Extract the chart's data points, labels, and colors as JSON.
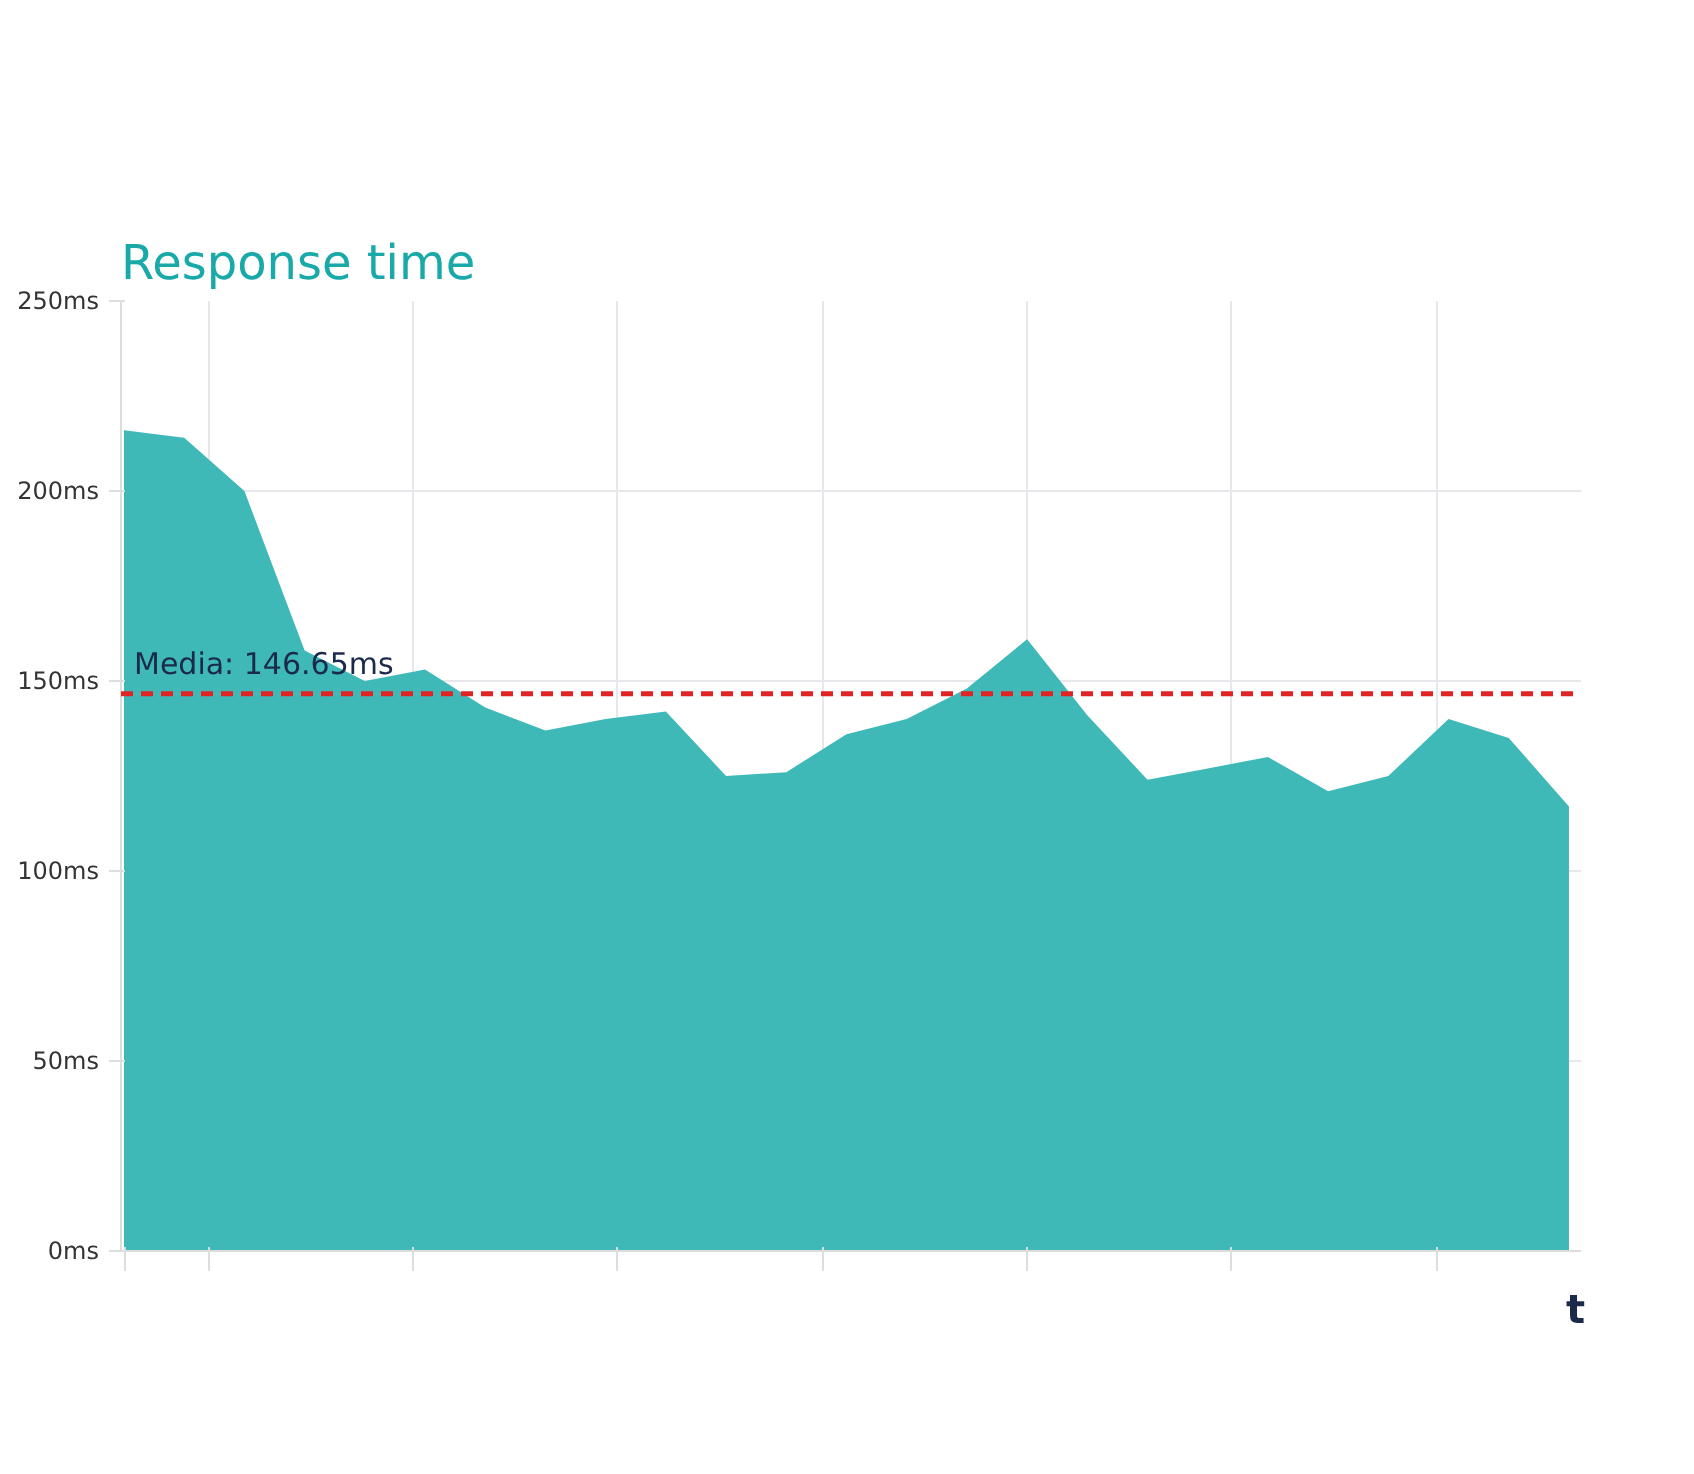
{
  "chart_data": {
    "type": "area",
    "title": "Response time",
    "xlabel": "t",
    "categories": [
      null,
      null,
      null,
      null,
      null,
      null,
      null,
      null,
      null,
      null,
      null,
      null,
      null,
      null,
      null,
      null,
      null,
      null,
      null,
      null,
      null,
      null,
      null,
      null,
      null
    ],
    "values": [
      216,
      214,
      200,
      158,
      150,
      153,
      143,
      137,
      140,
      142,
      125,
      126,
      136,
      140,
      148,
      161,
      141,
      124,
      127,
      130,
      121,
      125,
      140,
      135,
      117
    ],
    "color": "#3fb8b8",
    "ylim": [
      0,
      250
    ],
    "yticks": [
      {
        "value": 0,
        "label": "0ms"
      },
      {
        "value": 50,
        "label": "50ms"
      },
      {
        "value": 100,
        "label": "100ms"
      },
      {
        "value": 150,
        "label": "150ms"
      },
      {
        "value": 200,
        "label": "200ms"
      },
      {
        "value": 250,
        "label": "250ms"
      }
    ],
    "ref_lines": [
      {
        "axis": "y",
        "value": 146.65,
        "label": "Media: 146.65ms",
        "color": "#e02424",
        "line_style": "dashed"
      }
    ],
    "grid": true
  }
}
